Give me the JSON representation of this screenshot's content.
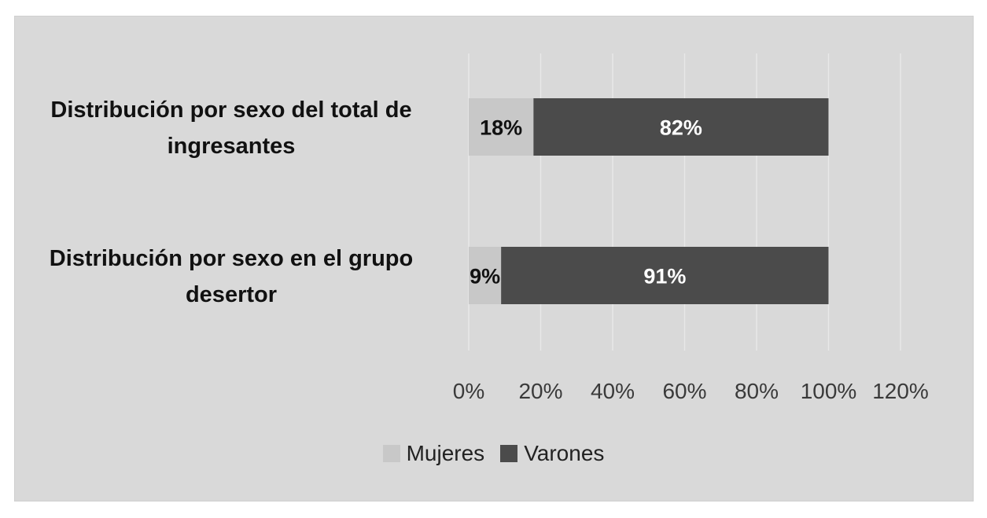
{
  "chart_data": {
    "type": "bar",
    "orientation": "horizontal",
    "stacked": true,
    "categories": [
      "Distribución por sexo del total de ingresantes",
      "Distribución por sexo en el grupo desertor"
    ],
    "category_lines": [
      [
        "Distribución por sexo del total de",
        "ingresantes"
      ],
      [
        "Distribución por sexo en el grupo",
        "desertor"
      ]
    ],
    "series": [
      {
        "name": "Mujeres",
        "values": [
          18,
          9
        ],
        "labels": [
          "18%",
          "9%"
        ],
        "color": "#c8c8c8",
        "label_color": "#111111"
      },
      {
        "name": "Varones",
        "values": [
          82,
          91
        ],
        "labels": [
          "82%",
          "91%"
        ],
        "color": "#4b4b4b",
        "label_color": "#ffffff"
      }
    ],
    "xlim": [
      0,
      120
    ],
    "x_ticks": [
      "0%",
      "20%",
      "40%",
      "60%",
      "80%",
      "100%",
      "120%"
    ],
    "grid": true,
    "legend_position": "bottom"
  },
  "colors": {
    "background": "#d9d9d9",
    "gridline": "#e8e8e8"
  }
}
